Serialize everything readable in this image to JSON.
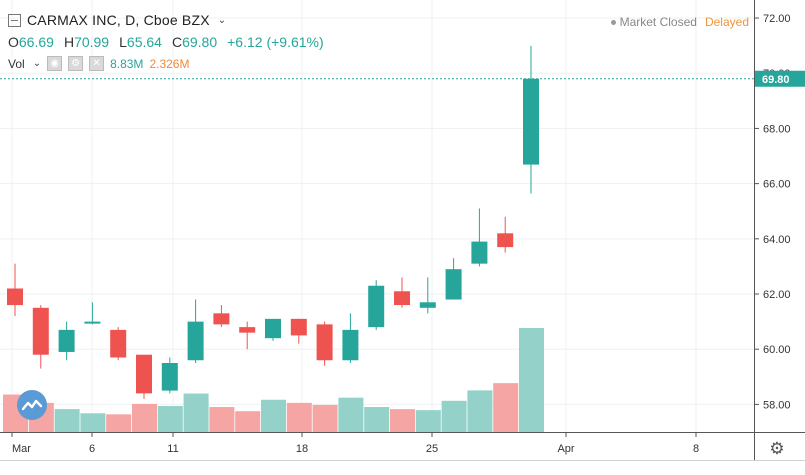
{
  "header": {
    "title": "CARMAX INC, D, Cboe BZX",
    "open_label": "O",
    "open": "66.69",
    "high_label": "H",
    "high": "70.99",
    "low_label": "L",
    "low": "65.64",
    "close_label": "C",
    "close": "69.80",
    "change": "+6.12 (+9.61%)"
  },
  "volume": {
    "label": "Vol",
    "value": "8.83M",
    "ma": "2.326M"
  },
  "status": {
    "market": "Market Closed",
    "delay": "Delayed"
  },
  "colors": {
    "up": "#26a69a",
    "down": "#ef5350",
    "vol_up": "#93d1c9",
    "vol_down": "#f5a5a4",
    "last_price_line": "#26a69a"
  },
  "chart_data": {
    "type": "candlestick",
    "title": "CARMAX INC, D, Cboe BZX",
    "x_tick_labels": [
      "Mar",
      "6",
      "11",
      "18",
      "25",
      "Apr",
      "8"
    ],
    "y_tick_labels": [
      "58.00",
      "60.00",
      "62.00",
      "64.00",
      "66.00",
      "68.00",
      "70.00",
      "72.00"
    ],
    "ylim": [
      57.0,
      72.4
    ],
    "last_price": "69.80",
    "grid": true,
    "candles": [
      {
        "o": 62.2,
        "h": 63.1,
        "l": 61.2,
        "c": 61.6
      },
      {
        "o": 61.5,
        "h": 61.6,
        "l": 59.3,
        "c": 59.8
      },
      {
        "o": 59.9,
        "h": 61.0,
        "l": 59.6,
        "c": 60.7
      },
      {
        "o": 61.0,
        "h": 61.7,
        "l": 60.9,
        "c": 61.0
      },
      {
        "o": 60.7,
        "h": 60.8,
        "l": 59.6,
        "c": 59.7
      },
      {
        "o": 59.8,
        "h": 59.8,
        "l": 58.2,
        "c": 58.4
      },
      {
        "o": 58.5,
        "h": 59.7,
        "l": 58.4,
        "c": 59.5
      },
      {
        "o": 59.6,
        "h": 61.8,
        "l": 59.5,
        "c": 61.0
      },
      {
        "o": 61.3,
        "h": 61.6,
        "l": 60.8,
        "c": 60.9
      },
      {
        "o": 60.8,
        "h": 61.0,
        "l": 60.0,
        "c": 60.6
      },
      {
        "o": 60.4,
        "h": 61.1,
        "l": 60.3,
        "c": 61.1
      },
      {
        "o": 61.1,
        "h": 61.1,
        "l": 60.2,
        "c": 60.5
      },
      {
        "o": 60.9,
        "h": 61.0,
        "l": 59.4,
        "c": 59.6
      },
      {
        "o": 59.6,
        "h": 61.3,
        "l": 59.5,
        "c": 60.7
      },
      {
        "o": 60.8,
        "h": 62.5,
        "l": 60.7,
        "c": 62.3
      },
      {
        "o": 62.1,
        "h": 62.6,
        "l": 61.5,
        "c": 61.6
      },
      {
        "o": 61.5,
        "h": 62.6,
        "l": 61.3,
        "c": 61.7
      },
      {
        "o": 61.8,
        "h": 63.3,
        "l": 61.8,
        "c": 62.9
      },
      {
        "o": 63.1,
        "h": 65.1,
        "l": 63.0,
        "c": 63.9
      },
      {
        "o": 64.2,
        "h": 64.8,
        "l": 63.5,
        "c": 63.7
      },
      {
        "o": 66.69,
        "h": 70.99,
        "l": 65.64,
        "c": 69.8
      }
    ],
    "volume_relative": [
      0.36,
      0.28,
      0.22,
      0.18,
      0.17,
      0.27,
      0.25,
      0.37,
      0.24,
      0.2,
      0.31,
      0.28,
      0.26,
      0.33,
      0.24,
      0.22,
      0.21,
      0.3,
      0.4,
      0.47,
      1.0
    ]
  }
}
